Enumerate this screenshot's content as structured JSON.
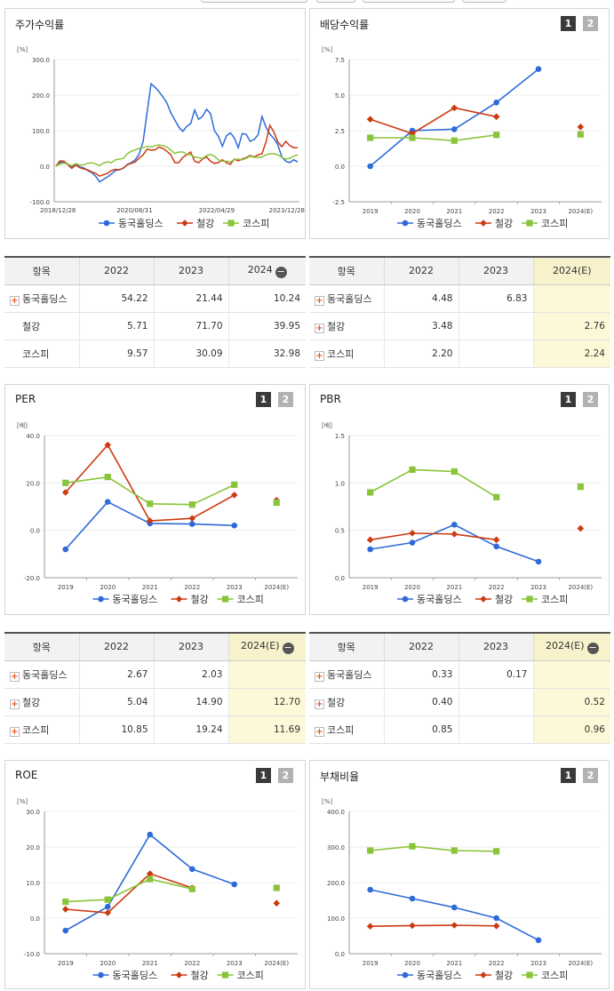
{
  "colors": {
    "company": "#2e6bd8",
    "industry": "#cc3a12",
    "kospi": "#8ac43a"
  },
  "legend": [
    "동국홀딩스",
    "철강",
    "코스피"
  ],
  "col_labels": [
    "2022",
    "2023",
    "2024",
    "2024(E)"
  ],
  "icons": {
    "expand": "+",
    "collapse": "−",
    "tab1": "1",
    "tab2": "2"
  },
  "charts": [
    {
      "id": "stock",
      "title": "주가수익률",
      "unit": "[%]",
      "chart_data": {
        "type": "line",
        "ylim": [
          -100,
          300
        ],
        "yticks": [
          -100,
          0,
          100,
          200,
          300
        ],
        "ytick_labels": [
          "-100.0",
          "0.0",
          "100.0",
          "200.0",
          "300.0"
        ],
        "x_tick_labels": [
          "2018/12/28",
          "2020/08/31",
          "2022/04/29",
          "2023/12/28"
        ],
        "x_tick_positions": [
          0,
          0.325,
          0.665,
          1.0
        ],
        "series": [
          {
            "name": "동국홀딩스",
            "values": [
              0,
              10,
              12,
              6,
              -4,
              6,
              -2,
              -5,
              -12,
              -18,
              -28,
              -44,
              -37,
              -30,
              -22,
              -12,
              -10,
              -6,
              5,
              10,
              18,
              34,
              70,
              152,
              232,
              222,
              210,
              195,
              178,
              150,
              130,
              110,
              98,
              112,
              120,
              158,
              132,
              140,
              160,
              148,
              100,
              84,
              56,
              85,
              94,
              80,
              52,
              92,
              90,
              70,
              75,
              88,
              140,
              110,
              90,
              78,
              60,
              26,
              14,
              10,
              18,
              12
            ]
          },
          {
            "name": "철강",
            "values": [
              0,
              15,
              14,
              4,
              -6,
              3,
              -4,
              -8,
              -10,
              -16,
              -20,
              -28,
              -24,
              -20,
              -12,
              -9,
              -10,
              -5,
              4,
              8,
              12,
              23,
              32,
              48,
              45,
              46,
              54,
              50,
              42,
              32,
              10,
              10,
              25,
              32,
              40,
              14,
              10,
              20,
              26,
              14,
              8,
              10,
              18,
              10,
              5,
              20,
              15,
              20,
              24,
              30,
              26,
              32,
              35,
              68,
              115,
              96,
              68,
              55,
              70,
              58,
              52,
              52
            ]
          },
          {
            "name": "코스피",
            "values": [
              0,
              6,
              9,
              5,
              2,
              7,
              3,
              4,
              8,
              10,
              6,
              2,
              9,
              12,
              10,
              18,
              20,
              22,
              35,
              42,
              46,
              50,
              52,
              56,
              54,
              58,
              60,
              58,
              54,
              45,
              36,
              40,
              40,
              33,
              32,
              26,
              24,
              22,
              30,
              33,
              28,
              18,
              14,
              14,
              12,
              18,
              20,
              18,
              22,
              28,
              25,
              25,
              26,
              32,
              35,
              35,
              32,
              25,
              20,
              22,
              28,
              32
            ]
          }
        ]
      }
    },
    {
      "id": "dividend",
      "title": "배당수익률",
      "unit": "[%]",
      "chart_data": {
        "type": "line",
        "ylim": [
          -2.5,
          7.5
        ],
        "yticks": [
          -2.5,
          0,
          2.5,
          5,
          7.5
        ],
        "ytick_labels": [
          "-2.5",
          "0.0",
          "2.5",
          "5.0",
          "7.5"
        ],
        "categories": [
          "2019",
          "2020",
          "2021",
          "2022",
          "2023",
          "2024(E)"
        ],
        "series": [
          {
            "name": "동국홀딩스",
            "values": [
              0.0,
              2.5,
              2.6,
              4.48,
              6.83,
              null
            ]
          },
          {
            "name": "철강",
            "values": [
              3.3,
              2.3,
              4.1,
              3.48,
              null,
              2.76
            ]
          },
          {
            "name": "코스피",
            "values": [
              2.0,
              2.0,
              1.8,
              2.2,
              null,
              2.24
            ]
          }
        ]
      }
    },
    {
      "id": "per",
      "title": "PER",
      "unit": "[배]",
      "chart_data": {
        "type": "line",
        "ylim": [
          -20,
          40
        ],
        "yticks": [
          -20,
          0,
          20,
          40
        ],
        "ytick_labels": [
          "-20.0",
          "0.0",
          "20.0",
          "40.0"
        ],
        "categories": [
          "2019",
          "2020",
          "2021",
          "2022",
          "2023",
          "2024(E)"
        ],
        "series": [
          {
            "name": "동국홀딩스",
            "values": [
              -8,
              12,
              2.9,
              2.67,
              2.03,
              null
            ]
          },
          {
            "name": "철강",
            "values": [
              16,
              36,
              4,
              5.04,
              14.9,
              12.7
            ]
          },
          {
            "name": "코스피",
            "values": [
              20,
              22.5,
              11.2,
              10.85,
              19.24,
              11.69
            ]
          }
        ]
      }
    },
    {
      "id": "pbr",
      "title": "PBR",
      "unit": "[배]",
      "chart_data": {
        "type": "line",
        "ylim": [
          0,
          1.5
        ],
        "yticks": [
          0,
          0.5,
          1.0,
          1.5
        ],
        "ytick_labels": [
          "0.0",
          "0.5",
          "1.0",
          "1.5"
        ],
        "categories": [
          "2019",
          "2020",
          "2021",
          "2022",
          "2023",
          "2024(E)"
        ],
        "series": [
          {
            "name": "동국홀딩스",
            "values": [
              0.3,
              0.37,
              0.56,
              0.33,
              0.17,
              null
            ]
          },
          {
            "name": "철강",
            "values": [
              0.4,
              0.47,
              0.46,
              0.4,
              null,
              0.52
            ]
          },
          {
            "name": "코스피",
            "values": [
              0.9,
              1.14,
              1.12,
              0.85,
              null,
              0.96
            ]
          }
        ]
      }
    },
    {
      "id": "roe",
      "title": "ROE",
      "unit": "[%]",
      "chart_data": {
        "type": "line",
        "ylim": [
          -10,
          30
        ],
        "yticks": [
          -10,
          0,
          10,
          20,
          30
        ],
        "ytick_labels": [
          "-10.0",
          "0.0",
          "10.0",
          "20.0",
          "30.0"
        ],
        "categories": [
          "2019",
          "2020",
          "2021",
          "2022",
          "2023",
          "2024(E)"
        ],
        "series": [
          {
            "name": "동국홀딩스",
            "values": [
              -3.5,
              3.2,
              23.5,
              13.8,
              9.5,
              null
            ]
          },
          {
            "name": "철강",
            "values": [
              2.5,
              1.5,
              12.5,
              8.5,
              null,
              4.2
            ]
          },
          {
            "name": "코스피",
            "values": [
              4.6,
              5.2,
              11,
              8.2,
              null,
              8.5
            ]
          }
        ]
      }
    },
    {
      "id": "debt",
      "title": "부채비율",
      "unit": "[%]",
      "chart_data": {
        "type": "line",
        "ylim": [
          0,
          400
        ],
        "yticks": [
          0,
          100,
          200,
          300,
          400
        ],
        "ytick_labels": [
          "0.0",
          "100.0",
          "200.0",
          "300.0",
          "400.0"
        ],
        "categories": [
          "2019",
          "2020",
          "2021",
          "2022",
          "2023",
          "2024(E)"
        ],
        "series": [
          {
            "name": "동국홀딩스",
            "values": [
              180,
              155,
              130,
              100,
              38,
              null
            ]
          },
          {
            "name": "철강",
            "values": [
              77,
              79,
              80,
              78,
              null,
              null
            ]
          },
          {
            "name": "코스피",
            "values": [
              290,
              302,
              290,
              288,
              null,
              null
            ]
          }
        ]
      }
    }
  ],
  "tables": [
    {
      "id": "stock-table",
      "header": {
        "label": "항목",
        "cols": [
          "2022",
          "2023",
          "2024"
        ],
        "collapse": true
      },
      "rows": [
        {
          "name": "동국홀딩스",
          "expand": true,
          "values": [
            "54.22",
            "21.44",
            "10.24"
          ]
        },
        {
          "name": "철강",
          "expand": false,
          "values": [
            "5.71",
            "71.70",
            "39.95"
          ]
        },
        {
          "name": "코스피",
          "expand": false,
          "values": [
            "9.57",
            "30.09",
            "32.98"
          ]
        }
      ],
      "highlight_last": false
    },
    {
      "id": "dividend-table",
      "header": {
        "label": "항목",
        "cols": [
          "2022",
          "2023",
          "2024(E)"
        ],
        "collapse": false
      },
      "rows": [
        {
          "name": "동국홀딩스",
          "expand": true,
          "values": [
            "4.48",
            "6.83",
            ""
          ]
        },
        {
          "name": "철강",
          "expand": true,
          "values": [
            "3.48",
            "",
            "2.76"
          ]
        },
        {
          "name": "코스피",
          "expand": true,
          "values": [
            "2.20",
            "",
            "2.24"
          ]
        }
      ],
      "highlight_last": true
    },
    {
      "id": "per-table",
      "header": {
        "label": "항목",
        "cols": [
          "2022",
          "2023",
          "2024(E)"
        ],
        "collapse": true
      },
      "rows": [
        {
          "name": "동국홀딩스",
          "expand": true,
          "values": [
            "2.67",
            "2.03",
            ""
          ]
        },
        {
          "name": "철강",
          "expand": true,
          "values": [
            "5.04",
            "14.90",
            "12.70"
          ]
        },
        {
          "name": "코스피",
          "expand": true,
          "values": [
            "10.85",
            "19.24",
            "11.69"
          ]
        }
      ],
      "highlight_last": true
    },
    {
      "id": "pbr-table",
      "header": {
        "label": "항목",
        "cols": [
          "2022",
          "2023",
          "2024(E)"
        ],
        "collapse": true
      },
      "rows": [
        {
          "name": "동국홀딩스",
          "expand": true,
          "values": [
            "0.33",
            "0.17",
            ""
          ]
        },
        {
          "name": "철강",
          "expand": true,
          "values": [
            "0.40",
            "",
            "0.52"
          ]
        },
        {
          "name": "코스피",
          "expand": true,
          "values": [
            "0.85",
            "",
            "0.96"
          ]
        }
      ],
      "highlight_last": true
    }
  ]
}
